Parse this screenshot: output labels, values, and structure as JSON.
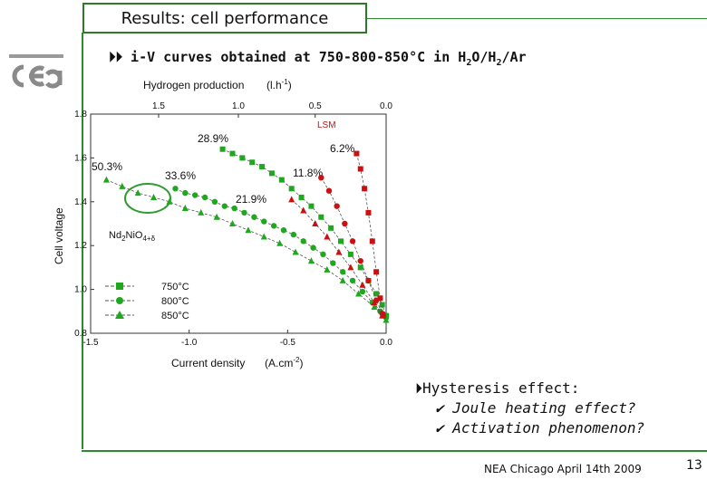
{
  "slide": {
    "title": "Results: cell performance",
    "bullet_arrow": "⏵⏵",
    "bullet_main": "i-V curves obtained at 750-800-850°C in H",
    "bullet_h2o_sub": "2",
    "bullet_mid": "O/H",
    "bullet_h2_sub": "2",
    "bullet_end": "/Ar",
    "hysteresis_title": "Hysteresis effect:",
    "hysteresis_items": [
      "Joule heating effect?",
      "Activation phenomenon?"
    ],
    "footer": "NEA Chicago April 14th 2009",
    "page_number": "13",
    "colors": {
      "frame": "#2a7a2a",
      "series": "#1fa81f",
      "lsm": "#cc1010",
      "ellipse": "#2f9a2f"
    }
  },
  "chart_data": {
    "type": "scatter",
    "xlabel": "Current density",
    "xlabel_unit": "(A.cm",
    "xlabel_unit_sup": "-2",
    "xlabel_unit_close": ")",
    "ylabel": "Cell voltage",
    "top_axis_label": "Hydrogen production",
    "top_axis_unit": "(l.h",
    "top_axis_unit_sup": "-1",
    "top_axis_unit_close": ")",
    "xlim": [
      -1.5,
      0.0
    ],
    "ylim": [
      0.8,
      1.8
    ],
    "x_ticks": [
      "-1.5",
      "-1.0",
      "-0.5",
      "0.0"
    ],
    "y_ticks": [
      "0.8",
      "1.0",
      "1.2",
      "1.4",
      "1.6",
      "1.8"
    ],
    "top_ticks": [
      "1.5",
      "1.0",
      "0.5",
      "0.0"
    ],
    "material_label": "Nd",
    "material_sub1": "2",
    "material_mid": "NiO",
    "material_sub2": "4+δ",
    "lsm_label": "LSM",
    "annotations": [
      "28.9%",
      "6.2%",
      "50.3%",
      "33.6%",
      "11.8%",
      "21.9%"
    ],
    "legend": [
      "750°C",
      "800°C",
      "850°C"
    ],
    "series": [
      {
        "name": "750°C",
        "marker": "square",
        "color": "#1fa81f",
        "x": [
          -0.83,
          -0.78,
          -0.73,
          -0.68,
          -0.63,
          -0.58,
          -0.53,
          -0.48,
          -0.43,
          -0.38,
          -0.33,
          -0.28,
          -0.23,
          -0.18,
          -0.13,
          -0.09,
          -0.05,
          -0.02,
          0.0
        ],
        "y": [
          1.64,
          1.62,
          1.6,
          1.58,
          1.56,
          1.53,
          1.5,
          1.46,
          1.42,
          1.38,
          1.33,
          1.28,
          1.22,
          1.16,
          1.1,
          1.04,
          0.98,
          0.93,
          0.88
        ]
      },
      {
        "name": "800°C",
        "marker": "circle",
        "color": "#1fa81f",
        "x": [
          -1.07,
          -1.02,
          -0.97,
          -0.92,
          -0.87,
          -0.82,
          -0.77,
          -0.72,
          -0.67,
          -0.62,
          -0.57,
          -0.52,
          -0.47,
          -0.42,
          -0.37,
          -0.32,
          -0.27,
          -0.22,
          -0.17,
          -0.12,
          -0.07,
          -0.03,
          0.0
        ],
        "y": [
          1.46,
          1.44,
          1.43,
          1.42,
          1.4,
          1.38,
          1.37,
          1.35,
          1.33,
          1.31,
          1.29,
          1.27,
          1.25,
          1.22,
          1.19,
          1.16,
          1.12,
          1.08,
          1.04,
          0.99,
          0.94,
          0.9,
          0.87
        ]
      },
      {
        "name": "850°C",
        "marker": "triangle",
        "color": "#1fa81f",
        "x": [
          -1.42,
          -1.34,
          -1.26,
          -1.18,
          -1.1,
          -1.02,
          -0.94,
          -0.86,
          -0.78,
          -0.7,
          -0.62,
          -0.54,
          -0.46,
          -0.38,
          -0.3,
          -0.22,
          -0.14,
          -0.06,
          0.0
        ],
        "y": [
          1.5,
          1.47,
          1.44,
          1.42,
          1.4,
          1.37,
          1.35,
          1.33,
          1.3,
          1.27,
          1.24,
          1.21,
          1.17,
          1.13,
          1.09,
          1.04,
          0.98,
          0.92,
          0.86
        ]
      },
      {
        "name": "LSM 750°C",
        "marker": "square",
        "color": "#cc1010",
        "x": [
          -0.15,
          -0.13,
          -0.11,
          -0.09,
          -0.07,
          -0.05,
          -0.03,
          -0.015
        ],
        "y": [
          1.62,
          1.55,
          1.46,
          1.35,
          1.22,
          1.08,
          0.96,
          0.88
        ]
      },
      {
        "name": "LSM 800°C",
        "marker": "circle",
        "color": "#cc1010",
        "x": [
          -0.33,
          -0.29,
          -0.25,
          -0.21,
          -0.17,
          -0.13,
          -0.09,
          -0.05,
          -0.02
        ],
        "y": [
          1.51,
          1.45,
          1.38,
          1.3,
          1.22,
          1.13,
          1.04,
          0.95,
          0.89
        ]
      },
      {
        "name": "LSM 850°C",
        "marker": "triangle",
        "color": "#cc1010",
        "x": [
          -0.48,
          -0.42,
          -0.36,
          -0.3,
          -0.24,
          -0.18,
          -0.12,
          -0.06,
          -0.02
        ],
        "y": [
          1.41,
          1.36,
          1.3,
          1.24,
          1.17,
          1.1,
          1.02,
          0.94,
          0.88
        ]
      }
    ],
    "grid": false
  }
}
